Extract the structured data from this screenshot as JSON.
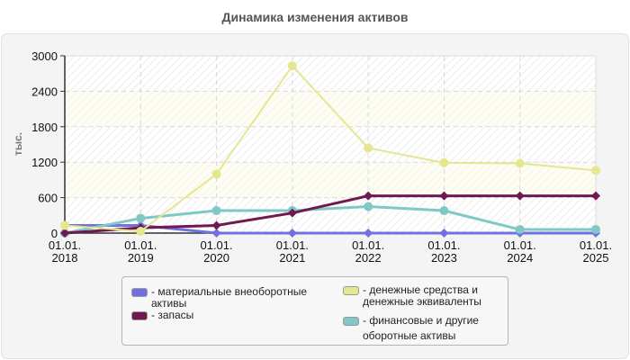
{
  "title": "Динамика изменения активов",
  "y_axis_label": "тыс.",
  "y_ticks": [
    "0",
    "600",
    "1200",
    "1800",
    "2400",
    "3000"
  ],
  "x_ticks": [
    {
      "line1": "01.01.",
      "line2": "2018"
    },
    {
      "line1": "01.01.",
      "line2": "2019"
    },
    {
      "line1": "01.01.",
      "line2": "2020"
    },
    {
      "line1": "01.01.",
      "line2": "2021"
    },
    {
      "line1": "01.01.",
      "line2": "2022"
    },
    {
      "line1": "01.01.",
      "line2": "2023"
    },
    {
      "line1": "01.01.",
      "line2": "2024"
    },
    {
      "line1": "01.01.",
      "line2": "2025"
    }
  ],
  "legend": [
    {
      "label": "- материальные внеоборотные активы",
      "color": "#7070e0"
    },
    {
      "label": "- запасы",
      "color": "#701850"
    },
    {
      "label": "- денежные средства и денежные эквиваленты",
      "color": "#e6e690"
    },
    {
      "label": "- финансовые и другие оборотные активы",
      "color": "#80c8c8"
    }
  ],
  "chart_data": {
    "type": "line",
    "title": "Динамика изменения активов",
    "xlabel": "",
    "ylabel": "тыс.",
    "ylim": [
      0,
      3000
    ],
    "grid": true,
    "legend_position": "bottom",
    "categories": [
      "01.01.2018",
      "01.01.2019",
      "01.01.2020",
      "01.01.2021",
      "01.01.2022",
      "01.01.2023",
      "01.01.2024",
      "01.01.2025"
    ],
    "series": [
      {
        "name": "материальные внеоборотные активы",
        "color": "#7070e0",
        "values": [
          130,
          130,
          0,
          0,
          0,
          0,
          0,
          0
        ]
      },
      {
        "name": "запасы",
        "color": "#701850",
        "values": [
          0,
          90,
          130,
          340,
          630,
          630,
          630,
          630
        ]
      },
      {
        "name": "денежные средства и денежные эквиваленты",
        "color": "#e6e690",
        "values": [
          130,
          30,
          1000,
          2830,
          1440,
          1190,
          1180,
          1060
        ]
      },
      {
        "name": "финансовые и другие оборотные активы",
        "color": "#80c8c8",
        "values": [
          0,
          250,
          380,
          380,
          450,
          380,
          60,
          60
        ]
      }
    ]
  }
}
